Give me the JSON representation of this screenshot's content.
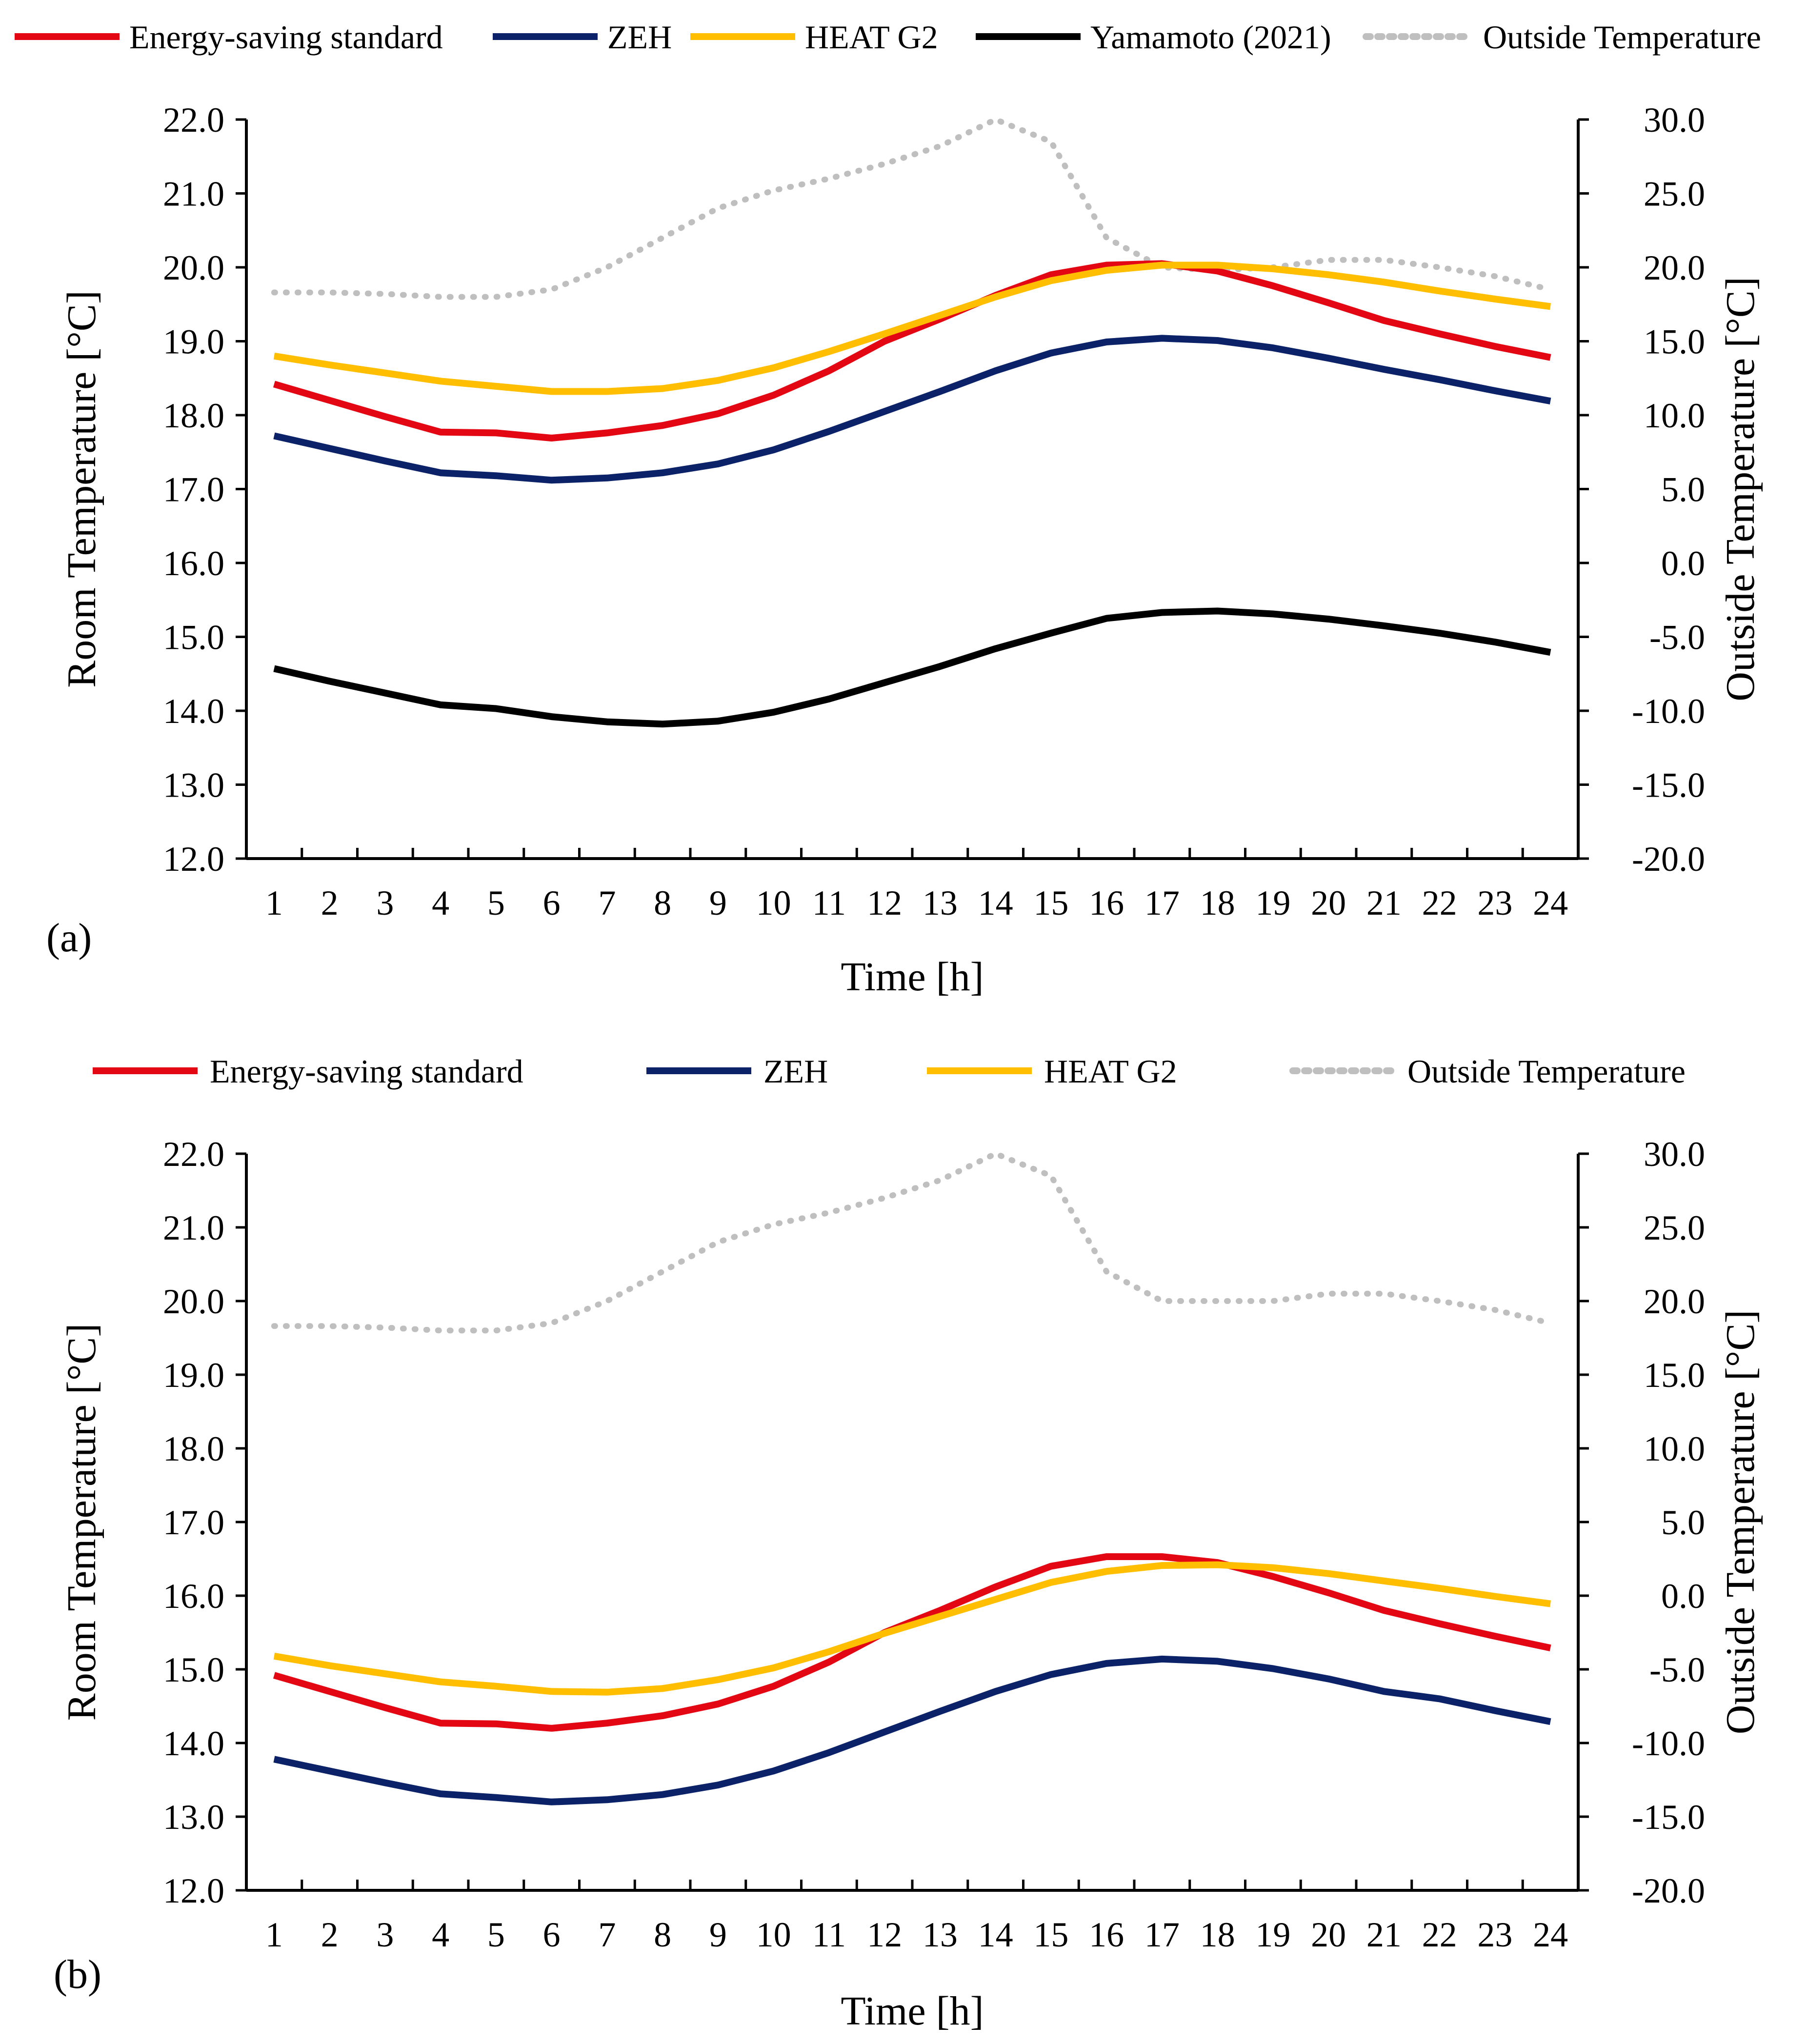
{
  "chart_data": [
    {
      "panel_label": "(a)",
      "type": "line",
      "xlabel": "Time [h]",
      "ylabel_left": "Room Temperature [°C]",
      "ylabel_right": "Outside Temperature [°C]",
      "ylim_left": [
        12,
        22
      ],
      "ylim_right": [
        -20,
        30
      ],
      "x_ticks": [
        "1",
        "2",
        "3",
        "4",
        "5",
        "6",
        "7",
        "8",
        "9",
        "10",
        "11",
        "12",
        "13",
        "14",
        "15",
        "16",
        "17",
        "18",
        "19",
        "20",
        "21",
        "22",
        "23",
        "24"
      ],
      "y_left_ticks": [
        "12.0",
        "13.0",
        "14.0",
        "15.0",
        "16.0",
        "17.0",
        "18.0",
        "19.0",
        "20.0",
        "21.0",
        "22.0"
      ],
      "y_right_ticks": [
        "-20.0",
        "-15.0",
        "-10.0",
        "-5.0",
        "0.0",
        "5.0",
        "10.0",
        "15.0",
        "20.0",
        "25.0",
        "30.0"
      ],
      "x": [
        1,
        2,
        3,
        4,
        5,
        6,
        7,
        8,
        9,
        10,
        11,
        12,
        13,
        14,
        15,
        16,
        17,
        18,
        19,
        20,
        21,
        22,
        23,
        24
      ],
      "series": [
        {
          "name": "Energy-saving standard",
          "color": "#e30613",
          "axis": "left",
          "style": "solid",
          "values": [
            18.42,
            18.2,
            17.98,
            17.77,
            17.76,
            17.69,
            17.76,
            17.86,
            18.02,
            18.27,
            18.6,
            19.0,
            19.3,
            19.62,
            19.9,
            20.03,
            20.05,
            19.95,
            19.75,
            19.52,
            19.28,
            19.1,
            18.93,
            18.78
          ]
        },
        {
          "name": "ZEH",
          "color": "#0b2269",
          "axis": "left",
          "style": "solid",
          "values": [
            17.72,
            17.55,
            17.38,
            17.22,
            17.18,
            17.12,
            17.15,
            17.22,
            17.34,
            17.53,
            17.78,
            18.05,
            18.32,
            18.6,
            18.84,
            18.99,
            19.04,
            19.01,
            18.91,
            18.77,
            18.62,
            18.48,
            18.33,
            18.19
          ]
        },
        {
          "name": "HEAT G2",
          "color": "#ffbe00",
          "axis": "left",
          "style": "solid",
          "values": [
            18.8,
            18.68,
            18.57,
            18.46,
            18.39,
            18.32,
            18.32,
            18.36,
            18.47,
            18.64,
            18.86,
            19.1,
            19.35,
            19.6,
            19.82,
            19.96,
            20.03,
            20.03,
            19.98,
            19.9,
            19.8,
            19.68,
            19.57,
            19.47
          ]
        },
        {
          "name": "Yamamoto (2021)",
          "color": "#000000",
          "axis": "left",
          "style": "solid",
          "values": [
            14.57,
            14.4,
            14.24,
            14.08,
            14.03,
            13.92,
            13.85,
            13.82,
            13.86,
            13.98,
            14.16,
            14.38,
            14.6,
            14.84,
            15.05,
            15.25,
            15.33,
            15.35,
            15.31,
            15.24,
            15.15,
            15.05,
            14.93,
            14.79
          ]
        },
        {
          "name": "Outside Temperature",
          "color": "#bfbfbf",
          "axis": "right",
          "style": "dotted",
          "values": [
            18.3,
            18.3,
            18.2,
            18.0,
            18.0,
            18.5,
            20.0,
            22.0,
            24.0,
            25.2,
            26.0,
            27.0,
            28.2,
            30.0,
            28.5,
            22.0,
            20.0,
            19.8,
            20.0,
            20.5,
            20.5,
            20.0,
            19.4,
            18.5
          ]
        }
      ]
    },
    {
      "panel_label": "(b)",
      "type": "line",
      "xlabel": "Time [h]",
      "ylabel_left": "Room Temperature [°C]",
      "ylabel_right": "Outside Temperature [°C]",
      "ylim_left": [
        12,
        22
      ],
      "ylim_right": [
        -20,
        30
      ],
      "x_ticks": [
        "1",
        "2",
        "3",
        "4",
        "5",
        "6",
        "7",
        "8",
        "9",
        "10",
        "11",
        "12",
        "13",
        "14",
        "15",
        "16",
        "17",
        "18",
        "19",
        "20",
        "21",
        "22",
        "23",
        "24"
      ],
      "y_left_ticks": [
        "12.0",
        "13.0",
        "14.0",
        "15.0",
        "16.0",
        "17.0",
        "18.0",
        "19.0",
        "20.0",
        "21.0",
        "22.0"
      ],
      "y_right_ticks": [
        "-20.0",
        "-15.0",
        "-10.0",
        "-5.0",
        "0.0",
        "5.0",
        "10.0",
        "15.0",
        "20.0",
        "25.0",
        "30.0"
      ],
      "x": [
        1,
        2,
        3,
        4,
        5,
        6,
        7,
        8,
        9,
        10,
        11,
        12,
        13,
        14,
        15,
        16,
        17,
        18,
        19,
        20,
        21,
        22,
        23,
        24
      ],
      "series": [
        {
          "name": "Energy-saving standard",
          "color": "#e30613",
          "axis": "left",
          "style": "solid",
          "values": [
            14.92,
            14.7,
            14.48,
            14.27,
            14.26,
            14.2,
            14.27,
            14.37,
            14.53,
            14.77,
            15.1,
            15.5,
            15.8,
            16.12,
            16.4,
            16.53,
            16.53,
            16.45,
            16.26,
            16.04,
            15.8,
            15.62,
            15.45,
            15.29
          ]
        },
        {
          "name": "ZEH",
          "color": "#0b2269",
          "axis": "left",
          "style": "solid",
          "values": [
            13.78,
            13.62,
            13.46,
            13.31,
            13.26,
            13.2,
            13.23,
            13.3,
            13.43,
            13.62,
            13.87,
            14.15,
            14.43,
            14.7,
            14.93,
            15.08,
            15.14,
            15.11,
            15.01,
            14.87,
            14.7,
            14.6,
            14.44,
            14.29
          ]
        },
        {
          "name": "HEAT G2",
          "color": "#ffbe00",
          "axis": "left",
          "style": "solid",
          "values": [
            15.18,
            15.05,
            14.94,
            14.83,
            14.77,
            14.7,
            14.69,
            14.74,
            14.86,
            15.02,
            15.24,
            15.49,
            15.72,
            15.95,
            16.18,
            16.33,
            16.41,
            16.42,
            16.38,
            16.3,
            16.2,
            16.1,
            15.99,
            15.89
          ]
        },
        {
          "name": "Outside Temperature",
          "color": "#bfbfbf",
          "axis": "right",
          "style": "dotted",
          "values": [
            18.3,
            18.3,
            18.2,
            18.0,
            18.0,
            18.5,
            20.0,
            22.0,
            24.0,
            25.2,
            26.0,
            27.0,
            28.2,
            30.0,
            28.5,
            22.0,
            20.0,
            20.0,
            20.0,
            20.5,
            20.5,
            20.0,
            19.4,
            18.5
          ]
        }
      ]
    }
  ]
}
